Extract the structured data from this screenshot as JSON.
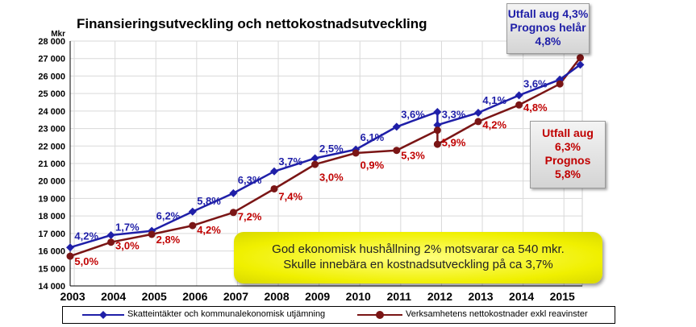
{
  "chart_data": {
    "type": "line",
    "title": "Finansieringsutveckling och nettokostnadsutveckling",
    "ylabel": "Mkr",
    "ylim": [
      14000,
      28000
    ],
    "yticks": [
      "14 000",
      "15 000",
      "16 000",
      "17 000",
      "18 000",
      "19 000",
      "20 000",
      "21 000",
      "22 000",
      "23 000",
      "24 000",
      "25 000",
      "26 000",
      "27 000",
      "28 000"
    ],
    "categories": [
      "2003",
      "2004",
      "2005",
      "2006",
      "2007",
      "2008",
      "2009",
      "2010",
      "2011",
      "2012",
      "2013",
      "2014",
      "2015"
    ],
    "grid": true,
    "series": [
      {
        "name": "Skatteintäkter och kommunalekonomisk utjämning",
        "color": "#1f1fa8",
        "points": [
          {
            "x": 2002.9,
            "y": 16200
          },
          {
            "x": 2003.9,
            "y": 16900
          },
          {
            "x": 2004.9,
            "y": 17150
          },
          {
            "x": 2005.9,
            "y": 18250
          },
          {
            "x": 2006.9,
            "y": 19300
          },
          {
            "x": 2007.9,
            "y": 20550
          },
          {
            "x": 2008.9,
            "y": 21300
          },
          {
            "x": 2009.9,
            "y": 21800
          },
          {
            "x": 2010.9,
            "y": 23100
          },
          {
            "x": 2011.9,
            "y": 23950
          },
          {
            "x": 2011.9,
            "y": 23200
          },
          {
            "x": 2012.9,
            "y": 23900
          },
          {
            "x": 2013.9,
            "y": 24900
          },
          {
            "x": 2014.9,
            "y": 25800
          },
          {
            "x": 2015.4,
            "y": 26650
          }
        ],
        "labels": [
          "4,2%",
          "1,7%",
          "6,2%",
          "5,8%",
          "6,3%",
          "3,7%",
          "2,5%",
          "6,1%",
          "3,6%",
          "3,3%",
          "4,1%",
          "3,6%"
        ]
      },
      {
        "name": "Verksamhetens nettokostnader exkl reavinster",
        "color": "#c00000",
        "points": [
          {
            "x": 2002.9,
            "y": 15700
          },
          {
            "x": 2003.9,
            "y": 16500
          },
          {
            "x": 2004.9,
            "y": 16950
          },
          {
            "x": 2005.9,
            "y": 17450
          },
          {
            "x": 2006.9,
            "y": 18200
          },
          {
            "x": 2007.9,
            "y": 19550
          },
          {
            "x": 2008.9,
            "y": 20950
          },
          {
            "x": 2009.9,
            "y": 21600
          },
          {
            "x": 2010.9,
            "y": 21750
          },
          {
            "x": 2011.9,
            "y": 22900
          },
          {
            "x": 2011.9,
            "y": 22100
          },
          {
            "x": 2012.9,
            "y": 23400
          },
          {
            "x": 2013.9,
            "y": 24350
          },
          {
            "x": 2014.9,
            "y": 25550
          },
          {
            "x": 2015.4,
            "y": 27050
          }
        ],
        "labels": [
          "5,0%",
          "3,0%",
          "2,8%",
          "4,2%",
          "7,2%",
          "7,4%",
          "3,0%",
          "0,9%",
          "5,3%",
          "5,9%",
          "4,2%",
          "4,8%"
        ]
      }
    ]
  },
  "annotations": {
    "blue_box": [
      "Utfall aug 4,3%",
      "Prognos helår",
      "4,8%"
    ],
    "red_box": [
      "Utfall aug",
      "6,3%",
      "Prognos",
      "5,8%"
    ],
    "yellow_box": [
      "God ekonomisk hushållning 2% motsvarar ca 540 mkr.",
      "Skulle innebära en kostnadsutveckling på ca 3,7%"
    ]
  }
}
